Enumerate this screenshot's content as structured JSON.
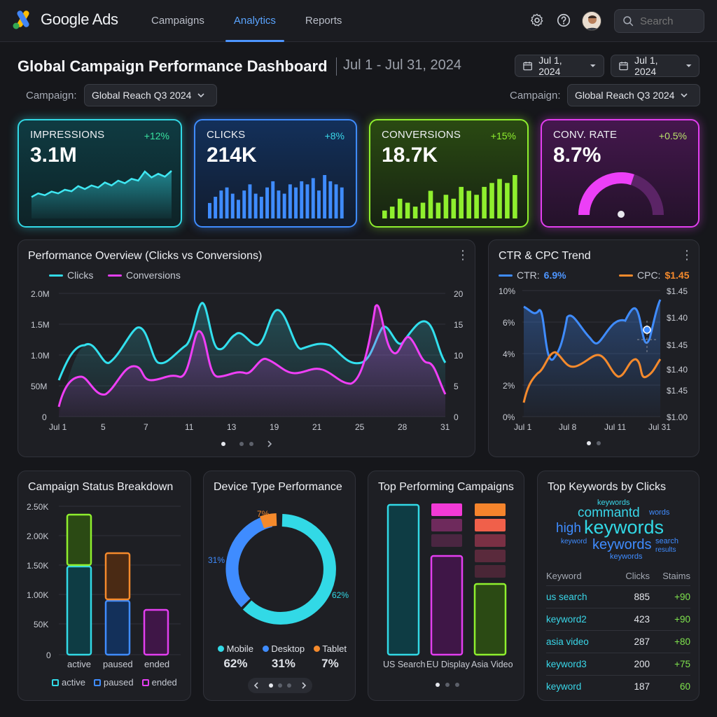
{
  "app": {
    "name": "Google Ads"
  },
  "nav": {
    "items": [
      {
        "label": "Campaigns"
      },
      {
        "label": "Analytics"
      },
      {
        "label": "Reports"
      }
    ]
  },
  "search": {
    "placeholder": "Search"
  },
  "header": {
    "title": "Global Campaign Performance Dashboard",
    "date_range": "Jul 1 - Jul 31, 2024"
  },
  "date_pickers": [
    {
      "value": "Jul 1, 2024"
    },
    {
      "value": "Jul 1, 2024"
    }
  ],
  "campaign_filter": {
    "label": "Campaign:",
    "value": "Global Reach Q3 2024"
  },
  "kpis": [
    {
      "label": "IMPRESSIONS",
      "delta": "+12%",
      "value": "3.1M",
      "color": "#32d9e6"
    },
    {
      "label": "CLICKS",
      "delta": "+8%",
      "value": "214K",
      "color": "#3f8cff"
    },
    {
      "label": "CONVERSIONS",
      "delta": "+15%",
      "value": "18.7K",
      "color": "#8fef2e"
    },
    {
      "label": "CONV. RATE",
      "delta": "+0.5%",
      "value": "8.7%",
      "color": "#e33ef0"
    }
  ],
  "kpi_series": {
    "impressions": [
      3,
      4,
      3.5,
      4.5,
      4,
      5,
      4.6,
      6,
      5.2,
      6.2,
      5.6,
      7,
      6.2,
      7.5,
      6.8,
      8,
      7.5,
      10,
      8.4,
      9.4,
      8.6,
      10.2
    ],
    "clicks": [
      5,
      7,
      9,
      10,
      8,
      6,
      9,
      11,
      8,
      7,
      10,
      12,
      9,
      8,
      11,
      10,
      12,
      11,
      13,
      9,
      14,
      12,
      11,
      10
    ],
    "conversions": [
      2,
      3,
      5,
      4,
      3,
      4,
      7,
      4,
      6,
      5,
      8,
      7,
      6,
      8,
      9,
      10,
      9,
      11
    ]
  },
  "conv_rate_gauge": {
    "percent": 0.6
  },
  "performance": {
    "title": "Performance Overview (Clicks vs Conversions)",
    "legend": [
      "Clicks",
      "Conversions"
    ],
    "y_left": [
      "2.0M",
      "1.5M",
      "1.0M",
      "50M",
      "0"
    ],
    "y_right": [
      "20",
      "15",
      "10",
      "5",
      "0"
    ],
    "x": [
      "Jul 1",
      "5",
      "7",
      "11",
      "13",
      "19",
      "21",
      "25",
      "28",
      "31"
    ]
  },
  "ctr_cpc": {
    "title": "CTR & CPC Trend",
    "ctr_label": "CTR:",
    "ctr_value": "6.9%",
    "cpc_label": "CPC:",
    "cpc_value": "$1.45",
    "y_left": [
      "10%",
      "6%",
      "4%",
      "2%",
      "0%"
    ],
    "y_right": [
      "$1.45",
      "$1.40",
      "$1.45",
      "$1.40",
      "$1.45",
      "$1.00"
    ],
    "x": [
      "Jul 1",
      "Jul 8",
      "Jul 11",
      "Jul 31"
    ]
  },
  "status": {
    "title": "Campaign Status Breakdown",
    "y": [
      "2.50K",
      "2.00K",
      "1.50K",
      "1.00K",
      "50K",
      "0"
    ],
    "categories": [
      "active",
      "paused",
      "ended"
    ],
    "legend": [
      "active",
      "paused",
      "ended"
    ]
  },
  "device": {
    "title": "Device Type Performance",
    "slices": [
      {
        "name": "Mobile",
        "value": "62%",
        "color": "#32d9e6"
      },
      {
        "name": "Desktop",
        "value": "31%",
        "color": "#3f8cff"
      },
      {
        "name": "Tablet",
        "value": "7%",
        "color": "#f58a2c"
      }
    ]
  },
  "top_campaigns": {
    "title": "Top Performing Campaigns",
    "labels": [
      "US Search",
      "EU Display",
      "Asia Video"
    ]
  },
  "keywords": {
    "title": "Top Keywords by Clicks",
    "cloud": [
      "keywords",
      "commantd",
      "words",
      "high",
      "keywords",
      "keyword",
      "keywords",
      "search",
      "results",
      "keywords"
    ],
    "headers": [
      "Keyword",
      "Clicks",
      "Staims"
    ],
    "rows": [
      {
        "keyword": "us search",
        "clicks": "885",
        "change": "+90"
      },
      {
        "keyword": "keyword2",
        "clicks": "423",
        "change": "+90"
      },
      {
        "keyword": "asia video",
        "clicks": "287",
        "change": "+80"
      },
      {
        "keyword": "keyword3",
        "clicks": "200",
        "change": "+75"
      },
      {
        "keyword": "keyword",
        "clicks": "187",
        "change": "60"
      }
    ]
  }
}
